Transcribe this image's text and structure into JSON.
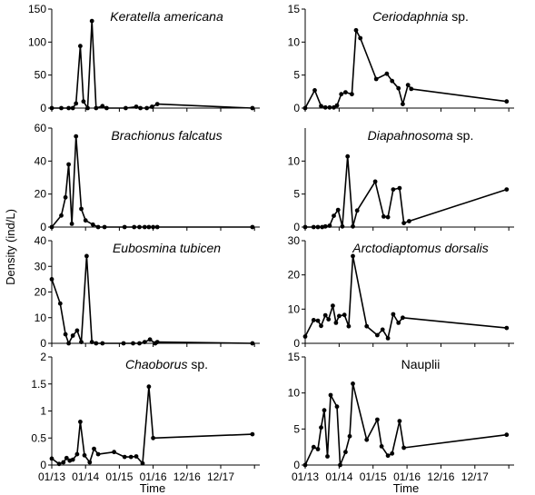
{
  "figure": {
    "ylabel": "Density (ind/L)",
    "xlabel": "Time",
    "xtick_labels": [
      "01/13",
      "01/14",
      "01/15",
      "01/16",
      "12/16",
      "12/17"
    ]
  },
  "chart_data": [
    {
      "type": "line",
      "title": "Keratella americana",
      "title_style": "italic",
      "ylim": [
        0,
        150
      ],
      "yticks": [
        0,
        50,
        100,
        150
      ],
      "x": [
        0.0,
        0.9,
        1.6,
        2.0,
        2.3,
        2.7,
        3.0,
        3.4,
        3.8,
        4.2,
        4.8,
        5.2,
        7.0,
        8.0,
        8.4,
        9.0,
        9.5,
        10.0,
        19.0
      ],
      "y": [
        0,
        0,
        0,
        0,
        7,
        94,
        10,
        0,
        132,
        0,
        3,
        0,
        0,
        2,
        0,
        0,
        2,
        6,
        0
      ]
    },
    {
      "type": "line",
      "title": "Ceriodaphnia sp.",
      "title_style": "mixed",
      "ylim": [
        0,
        15
      ],
      "yticks": [
        0,
        5,
        10,
        15
      ],
      "x": [
        0.0,
        0.9,
        1.5,
        1.9,
        2.3,
        2.7,
        3.0,
        3.4,
        3.8,
        4.4,
        4.8,
        5.2,
        6.7,
        7.7,
        8.2,
        8.8,
        9.2,
        9.7,
        10.0,
        19.0
      ],
      "y": [
        0,
        2.7,
        0.3,
        0.1,
        0.1,
        0.1,
        0.4,
        2.1,
        2.4,
        2.1,
        11.8,
        10.6,
        4.4,
        5.2,
        4.1,
        3.0,
        0.6,
        3.5,
        2.9,
        1.0
      ]
    },
    {
      "type": "line",
      "title": "Brachionus falcatus",
      "title_style": "italic",
      "ylim": [
        0,
        60
      ],
      "yticks": [
        0,
        20,
        40,
        60
      ],
      "x": [
        0.0,
        0.9,
        1.3,
        1.6,
        1.9,
        2.3,
        2.8,
        3.2,
        3.9,
        4.4,
        5.0,
        6.9,
        7.8,
        8.3,
        8.8,
        9.2,
        9.6,
        10.0,
        19.0
      ],
      "y": [
        0,
        7,
        18,
        38,
        2,
        55,
        11,
        4,
        1.5,
        0,
        0,
        0,
        0,
        0,
        0,
        0,
        0,
        0,
        0
      ]
    },
    {
      "type": "line",
      "title": "Diapahnosoma sp.",
      "title_style": "mixed",
      "ylim": [
        0,
        15
      ],
      "yticks": [
        0,
        5,
        10
      ],
      "x": [
        0.0,
        0.8,
        1.2,
        1.6,
        1.9,
        2.3,
        2.7,
        3.1,
        3.5,
        4.0,
        4.5,
        4.9,
        6.6,
        7.4,
        7.8,
        8.3,
        8.9,
        9.3,
        9.8,
        19.0
      ],
      "y": [
        0,
        0,
        0,
        0,
        0.1,
        0.2,
        1.7,
        2.6,
        0.1,
        10.7,
        0.1,
        2.5,
        6.9,
        1.6,
        1.5,
        5.7,
        5.9,
        0.6,
        0.9,
        5.7
      ]
    },
    {
      "type": "line",
      "title": "Eubosmina tubicen",
      "title_style": "italic",
      "ylim": [
        0,
        40
      ],
      "yticks": [
        0,
        10,
        20,
        30,
        40
      ],
      "x": [
        0.0,
        0.8,
        1.3,
        1.6,
        2.0,
        2.4,
        2.8,
        3.3,
        3.8,
        4.2,
        4.8,
        6.8,
        7.7,
        8.3,
        8.8,
        9.3,
        9.8,
        10.0,
        19.0
      ],
      "y": [
        25,
        15.5,
        3.5,
        0,
        3,
        5,
        0.5,
        34,
        0.5,
        0,
        0,
        0,
        0,
        0,
        0.5,
        1.5,
        0,
        0.5,
        0
      ]
    },
    {
      "type": "line",
      "title": "Arctodiaptomus dorsalis",
      "title_style": "italic",
      "ylim": [
        0,
        30
      ],
      "yticks": [
        0,
        10,
        20,
        30
      ],
      "x": [
        0.0,
        0.8,
        1.2,
        1.5,
        1.9,
        2.2,
        2.6,
        2.9,
        3.2,
        3.7,
        4.1,
        4.5,
        5.8,
        6.8,
        7.3,
        7.8,
        8.3,
        8.8,
        9.2,
        19.0
      ],
      "y": [
        2,
        6.8,
        6.6,
        5.1,
        8.2,
        7.0,
        11.0,
        6.0,
        8.0,
        8.3,
        5.0,
        25.5,
        5.0,
        2.4,
        4.0,
        1.5,
        8.5,
        6.0,
        7.5,
        4.5
      ]
    },
    {
      "type": "line",
      "title": "Chaoborus sp.",
      "title_style": "mixed",
      "ylim": [
        0,
        2
      ],
      "yticks": [
        0,
        0.5,
        1,
        1.5,
        2
      ],
      "x": [
        0.0,
        0.7,
        1.1,
        1.4,
        1.7,
        2.0,
        2.4,
        2.7,
        3.1,
        3.6,
        4.0,
        4.4,
        5.9,
        6.9,
        7.5,
        8.0,
        8.6,
        9.2,
        9.6,
        19.0
      ],
      "y": [
        0.12,
        0.02,
        0.05,
        0.13,
        0.08,
        0.1,
        0.2,
        0.8,
        0.18,
        0.05,
        0.3,
        0.2,
        0.24,
        0.15,
        0.15,
        0.16,
        0.03,
        1.45,
        0.5,
        0.57
      ]
    },
    {
      "type": "line",
      "title": "Nauplii",
      "title_style": "normal",
      "ylim": [
        0,
        15
      ],
      "yticks": [
        0,
        5,
        10,
        15
      ],
      "x": [
        0.0,
        0.8,
        1.2,
        1.5,
        1.8,
        2.1,
        2.4,
        3.0,
        3.3,
        3.8,
        4.2,
        4.5,
        5.8,
        6.8,
        7.2,
        7.8,
        8.2,
        8.9,
        9.3,
        19.0
      ],
      "y": [
        0,
        2.5,
        2.2,
        5.2,
        7.6,
        1.2,
        9.7,
        8.1,
        0,
        1.8,
        4.0,
        11.3,
        3.5,
        6.3,
        2.6,
        1.3,
        1.6,
        6.1,
        2.4,
        4.2
      ]
    }
  ]
}
